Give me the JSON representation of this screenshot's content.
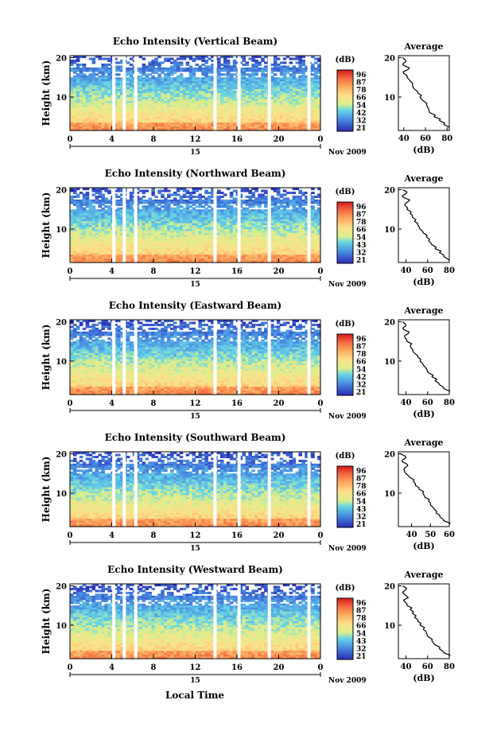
{
  "figure": {
    "xlabel": "Local Time",
    "date_main": "15",
    "date_right": "Nov 2009",
    "colorbar_unit": "(dB)",
    "colorbar_ticks_default": [
      "96",
      "87",
      "78",
      "66",
      "54",
      "42",
      "32",
      "21"
    ]
  },
  "chart_data": [
    {
      "type": "heatmap",
      "title": "Echo Intensity (Vertical Beam)",
      "ylabel": "Height (km)",
      "xticks": [
        "0",
        "4",
        "8",
        "12",
        "16",
        "20",
        "0"
      ],
      "yticks": [
        "20",
        "10"
      ],
      "xlim": [
        0,
        24
      ],
      "ylim": [
        1.5,
        20.5
      ],
      "colorbar_unit": "(dB)",
      "colorbar_ticks": [
        "96",
        "87",
        "78",
        "66",
        "54",
        "42",
        "32",
        "21"
      ],
      "gaps_hours": [
        4.2,
        5.2,
        6.3,
        13.9,
        16.2,
        19.1,
        22.9
      ],
      "profile": {
        "title": "Average",
        "xlabel": "(dB)",
        "xticks": [
          "40",
          "60",
          "80"
        ],
        "xlim": [
          35,
          82
        ],
        "yticks": [
          "20",
          "10"
        ],
        "height_km": [
          2,
          3,
          4,
          5,
          6,
          7,
          8,
          9,
          10,
          11,
          12,
          13,
          14,
          15,
          16,
          17,
          18,
          19,
          20
        ],
        "avg_db": [
          82,
          77,
          73,
          68,
          64,
          63,
          61,
          58,
          55,
          53,
          50,
          48,
          46,
          43,
          40,
          44,
          40,
          42,
          39
        ]
      }
    },
    {
      "type": "heatmap",
      "title": "Echo Intensity (Northward Beam)",
      "ylabel": "Height (km)",
      "xticks": [
        "0",
        "4",
        "8",
        "12",
        "16",
        "20",
        "0"
      ],
      "yticks": [
        "20",
        "10"
      ],
      "xlim": [
        0,
        24
      ],
      "ylim": [
        1.5,
        20.5
      ],
      "colorbar_unit": "(dB)",
      "colorbar_ticks": [
        "96",
        "87",
        "78",
        "66",
        "54",
        "43",
        "32",
        "21"
      ],
      "gaps_hours": [
        4.2,
        5.2,
        6.3,
        13.9,
        16.2,
        19.1,
        22.9
      ],
      "profile": {
        "title": "Average",
        "xlabel": "(dB)",
        "xticks": [
          "40",
          "60",
          "80"
        ],
        "xlim": [
          33,
          80
        ],
        "yticks": [
          "20",
          "10"
        ],
        "height_km": [
          2,
          3,
          4,
          5,
          6,
          7,
          8,
          9,
          10,
          11,
          12,
          13,
          14,
          15,
          16,
          17,
          18,
          19,
          20
        ],
        "avg_db": [
          80,
          75,
          71,
          67,
          64,
          61,
          59,
          56,
          53,
          51,
          48,
          46,
          44,
          41,
          39,
          42,
          38,
          40,
          37
        ]
      }
    },
    {
      "type": "heatmap",
      "title": "Echo Intensity (Eastward Beam)",
      "ylabel": "Height (km)",
      "xticks": [
        "0",
        "4",
        "8",
        "12",
        "16",
        "20",
        "0"
      ],
      "yticks": [
        "20",
        "10"
      ],
      "xlim": [
        0,
        24
      ],
      "ylim": [
        1.5,
        20.5
      ],
      "colorbar_unit": "(dB)",
      "colorbar_ticks": [
        "96",
        "87",
        "78",
        "66",
        "54",
        "42",
        "32",
        "21"
      ],
      "gaps_hours": [
        4.2,
        5.2,
        6.3,
        13.9,
        16.2,
        19.1,
        22.9
      ],
      "profile": {
        "title": "Average",
        "xlabel": "(dB)",
        "xticks": [
          "40",
          "60",
          "80"
        ],
        "xlim": [
          33,
          80
        ],
        "yticks": [
          "20",
          "10"
        ],
        "height_km": [
          2,
          3,
          4,
          5,
          6,
          7,
          8,
          9,
          10,
          11,
          12,
          13,
          14,
          15,
          16,
          17,
          18,
          19,
          20
        ],
        "avg_db": [
          80,
          75,
          71,
          67,
          64,
          61,
          59,
          56,
          53,
          51,
          48,
          46,
          44,
          41,
          39,
          42,
          38,
          40,
          37
        ]
      }
    },
    {
      "type": "heatmap",
      "title": "Echo Intensity (Southward Beam)",
      "ylabel": "Height (km)",
      "xticks": [
        "0",
        "4",
        "8",
        "12",
        "16",
        "20",
        "0"
      ],
      "yticks": [
        "20",
        "10"
      ],
      "xlim": [
        0,
        24
      ],
      "ylim": [
        1.5,
        20.5
      ],
      "colorbar_unit": "(dB)",
      "colorbar_ticks": [
        "96",
        "87",
        "78",
        "66",
        "54",
        "43",
        "32",
        "21"
      ],
      "gaps_hours": [
        4.2,
        5.2,
        6.3,
        13.9,
        16.2,
        19.1,
        22.9
      ],
      "profile": {
        "title": "Average",
        "xlabel": "(dB)",
        "xticks": [
          "40",
          "50",
          "60"
        ],
        "xlim": [
          33,
          60
        ],
        "yticks": [
          "20",
          "10"
        ],
        "height_km": [
          2,
          3,
          4,
          5,
          6,
          7,
          8,
          9,
          10,
          11,
          12,
          13,
          14,
          15,
          16,
          17,
          18,
          19,
          20
        ],
        "avg_db": [
          60,
          57,
          55,
          53,
          52,
          50,
          49,
          47,
          46,
          44,
          42,
          41,
          39,
          37,
          36,
          38,
          35,
          37,
          34
        ]
      }
    },
    {
      "type": "heatmap",
      "title": "Echo Intensity (Westward Beam)",
      "ylabel": "Height (km)",
      "xticks": [
        "0",
        "4",
        "8",
        "12",
        "16",
        "20",
        "0"
      ],
      "yticks": [
        "20",
        "10"
      ],
      "xlim": [
        0,
        24
      ],
      "ylim": [
        1.5,
        20.5
      ],
      "colorbar_unit": "(dB)",
      "colorbar_ticks": [
        "96",
        "87",
        "78",
        "66",
        "54",
        "43",
        "32",
        "21"
      ],
      "gaps_hours": [
        4.2,
        5.2,
        6.3,
        13.9,
        16.2,
        19.1,
        22.9
      ],
      "profile": {
        "title": "Average",
        "xlabel": "(dB)",
        "xticks": [
          "40",
          "60",
          "80"
        ],
        "xlim": [
          33,
          80
        ],
        "yticks": [
          "20",
          "10"
        ],
        "height_km": [
          2,
          3,
          4,
          5,
          6,
          7,
          8,
          9,
          10,
          11,
          12,
          13,
          14,
          15,
          16,
          17,
          18,
          19,
          20
        ],
        "avg_db": [
          80,
          75,
          71,
          67,
          64,
          61,
          59,
          56,
          53,
          51,
          48,
          46,
          44,
          41,
          39,
          42,
          38,
          40,
          37
        ]
      }
    }
  ]
}
